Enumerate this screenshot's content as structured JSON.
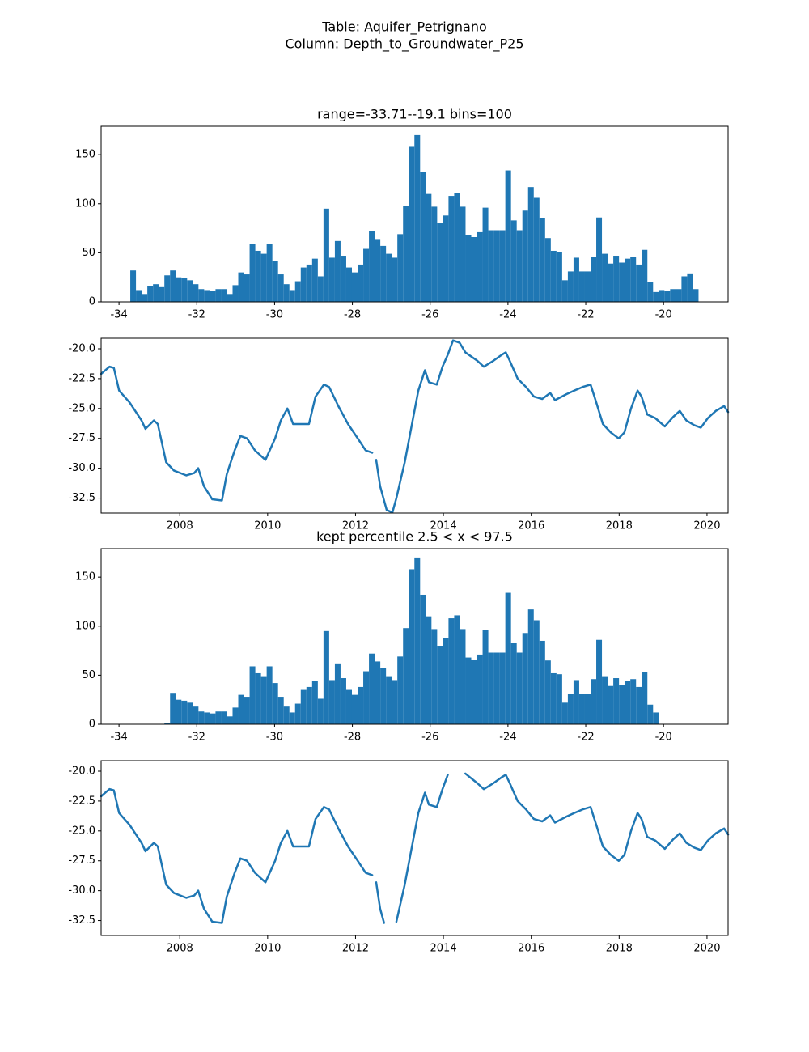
{
  "title": [
    "Table: Aquifer_Petrignano",
    "Column: Depth_to_Groundwater_P25"
  ],
  "chart_data": [
    {
      "type": "histogram",
      "title": "range=-33.71--19.1 bins=100",
      "color": "#1f77b4",
      "bins": [
        -33.71,
        -33.5639,
        -33.4178,
        -33.2717,
        -33.1256,
        -32.9795,
        -32.8334,
        -32.6873,
        -32.5412,
        -32.3951,
        -32.249,
        -32.1029,
        -31.9568,
        -31.8107,
        -31.6646,
        -31.5185,
        -31.3724,
        -31.2263,
        -31.0802,
        -30.9341,
        -30.788,
        -30.6419,
        -30.4958,
        -30.3497,
        -30.2036,
        -30.0575,
        -29.9114,
        -29.7653,
        -29.6192,
        -29.4731,
        -29.327,
        -29.1809,
        -29.0348,
        -28.8887,
        -28.7426,
        -28.5965,
        -28.4504,
        -28.3043,
        -28.1582,
        -28.0121,
        -27.866,
        -27.7199,
        -27.5738,
        -27.4277,
        -27.2816,
        -27.1355,
        -26.9894,
        -26.8433,
        -26.6972,
        -26.5511,
        -26.405,
        -26.2589,
        -26.1128,
        -25.9667,
        -25.8206,
        -25.6745,
        -25.5284,
        -25.3823,
        -25.2362,
        -25.0901,
        -24.944,
        -24.7979,
        -24.6518,
        -24.5057,
        -24.3596,
        -24.2135,
        -24.0674,
        -23.9213,
        -23.7752,
        -23.6291,
        -23.483,
        -23.3369,
        -23.1908,
        -23.0447,
        -22.8986,
        -22.7525,
        -22.6064,
        -22.4603,
        -22.3142,
        -22.1681,
        -22.022,
        -21.8759,
        -21.7298,
        -21.5837,
        -21.4376,
        -21.2915,
        -21.1454,
        -20.9993,
        -20.8532,
        -20.7071,
        -20.561,
        -20.4149,
        -20.2688,
        -20.1227,
        -19.9766,
        -19.8305,
        -19.6844,
        -19.5383,
        -19.3922,
        -19.2461,
        -19.1
      ],
      "values": [
        32,
        12,
        8,
        16,
        18,
        15,
        27,
        32,
        25,
        24,
        22,
        18,
        13,
        12,
        11,
        13,
        13,
        8,
        17,
        30,
        28,
        59,
        52,
        49,
        59,
        42,
        28,
        18,
        12,
        21,
        35,
        38,
        44,
        26,
        95,
        45,
        62,
        47,
        35,
        30,
        38,
        54,
        72,
        64,
        57,
        49,
        45,
        69,
        98,
        158,
        170,
        132,
        110,
        97,
        80,
        88,
        108,
        111,
        97,
        68,
        66,
        71,
        96,
        73,
        73,
        73,
        134,
        83,
        73,
        93,
        117,
        106,
        85,
        65,
        52,
        51,
        22,
        31,
        45,
        31,
        31,
        46,
        86,
        49,
        39,
        47,
        40,
        44,
        46,
        38,
        53,
        20,
        10,
        12,
        11,
        13,
        13,
        26,
        29,
        13
      ],
      "xlim": [
        -34.46,
        -18.34
      ],
      "ylim": [
        0,
        179
      ],
      "xticks": [
        -34,
        -32,
        -30,
        -28,
        -26,
        -24,
        -22,
        -20
      ],
      "yticks": [
        0,
        50,
        100,
        150
      ]
    },
    {
      "type": "line",
      "color": "#1f77b4",
      "x": [
        2006.21,
        2006.4,
        2006.5,
        2006.62,
        2006.86,
        2007.13,
        2007.22,
        2007.41,
        2007.5,
        2007.69,
        2007.87,
        2008.15,
        2008.33,
        2008.42,
        2008.55,
        2008.74,
        2008.96,
        2009.07,
        2009.25,
        2009.38,
        2009.53,
        2009.71,
        2009.95,
        2010.17,
        2010.3,
        2010.45,
        2010.58,
        2010.94,
        2011.09,
        2011.28,
        2011.4,
        2011.61,
        2011.83,
        2012.05,
        2012.23,
        2012.38,
        2012.42,
        2012.47,
        2012.56,
        2012.71,
        2012.84,
        2012.93,
        2013.12,
        2013.3,
        2013.43,
        2013.58,
        2013.67,
        2013.85,
        2013.98,
        2014.1,
        2014.22,
        2014.37,
        2014.5,
        2014.77,
        2014.92,
        2015.14,
        2015.33,
        2015.42,
        2015.51,
        2015.69,
        2015.88,
        2016.06,
        2016.25,
        2016.43,
        2016.54,
        2016.8,
        2016.98,
        2017.17,
        2017.35,
        2017.48,
        2017.63,
        2017.81,
        2017.99,
        2018.12,
        2018.27,
        2018.42,
        2018.51,
        2018.64,
        2018.82,
        2019.04,
        2019.23,
        2019.38,
        2019.53,
        2019.71,
        2019.86,
        2020.02,
        2020.2,
        2020.39,
        2020.48
      ],
      "values": [
        -22.1,
        -21.5,
        -21.6,
        -23.5,
        -24.5,
        -26,
        -26.7,
        -26,
        -26.3,
        -29.5,
        -30.2,
        -30.6,
        -30.4,
        -30,
        -31.5,
        -32.6,
        -32.7,
        -30.5,
        -28.5,
        -27.3,
        -27.5,
        -28.5,
        -29.3,
        -27.5,
        -26,
        -25,
        -26.3,
        -26.3,
        -24,
        -23,
        -23.2,
        -24.8,
        -26.3,
        -27.5,
        -28.5,
        -28.7,
        null,
        -29.3,
        -31.5,
        -33.5,
        -33.7,
        -32.5,
        -29.5,
        -26,
        -23.5,
        -21.8,
        -22.8,
        -23,
        -21.5,
        -20.5,
        -19.3,
        -19.5,
        -20.3,
        -21,
        -21.5,
        -21,
        -20.5,
        -20.3,
        -21,
        -22.5,
        -23.2,
        -24,
        -24.2,
        -23.7,
        -24.3,
        -23.8,
        -23.5,
        -23.2,
        -23,
        -24.5,
        -26.3,
        -27,
        -27.5,
        -27,
        -25,
        -23.5,
        -24,
        -25.5,
        -25.8,
        -26.5,
        -25.7,
        -25.2,
        -26,
        -26.4,
        -26.6,
        -25.8,
        -25.2,
        -24.8,
        -25.3
      ],
      "xlim": [
        2006.21,
        2020.48
      ],
      "ylim": [
        -33.75,
        -19.12
      ],
      "xticks": [
        2008,
        2010,
        2012,
        2014,
        2016,
        2018,
        2020
      ],
      "yticks": [
        -32.5,
        {
          "value": -30,
          "label": "-30.0"
        },
        -27.5,
        {
          "value": -25,
          "label": "-25.0"
        },
        -22.5,
        {
          "value": -20,
          "label": "-20.0"
        }
      ]
    },
    {
      "type": "histogram",
      "title": "kept percentile 2.5 < x < 97.5",
      "color": "#1f77b4",
      "bins": [
        -33.71,
        -33.5639,
        -33.4178,
        -33.2717,
        -33.1256,
        -32.9795,
        -32.8334,
        -32.6873,
        -32.5412,
        -32.3951,
        -32.249,
        -32.1029,
        -31.9568,
        -31.8107,
        -31.6646,
        -31.5185,
        -31.3724,
        -31.2263,
        -31.0802,
        -30.9341,
        -30.788,
        -30.6419,
        -30.4958,
        -30.3497,
        -30.2036,
        -30.0575,
        -29.9114,
        -29.7653,
        -29.6192,
        -29.4731,
        -29.327,
        -29.1809,
        -29.0348,
        -28.8887,
        -28.7426,
        -28.5965,
        -28.4504,
        -28.3043,
        -28.1582,
        -28.0121,
        -27.866,
        -27.7199,
        -27.5738,
        -27.4277,
        -27.2816,
        -27.1355,
        -26.9894,
        -26.8433,
        -26.6972,
        -26.5511,
        -26.405,
        -26.2589,
        -26.1128,
        -25.9667,
        -25.8206,
        -25.6745,
        -25.5284,
        -25.3823,
        -25.2362,
        -25.0901,
        -24.944,
        -24.7979,
        -24.6518,
        -24.5057,
        -24.3596,
        -24.2135,
        -24.0674,
        -23.9213,
        -23.7752,
        -23.6291,
        -23.483,
        -23.3369,
        -23.1908,
        -23.0447,
        -22.8986,
        -22.7525,
        -22.6064,
        -22.4603,
        -22.3142,
        -22.1681,
        -22.022,
        -21.8759,
        -21.7298,
        -21.5837,
        -21.4376,
        -21.2915,
        -21.1454,
        -20.9993,
        -20.8532,
        -20.7071,
        -20.561,
        -20.4149,
        -20.2688,
        -20.1227,
        -19.9766,
        -19.8305,
        -19.6844,
        -19.5383,
        -19.3922,
        -19.2461,
        -19.1
      ],
      "values": [
        0,
        0,
        0,
        0,
        0,
        0,
        1,
        32,
        25,
        24,
        22,
        18,
        13,
        12,
        11,
        13,
        13,
        8,
        17,
        30,
        28,
        59,
        52,
        49,
        59,
        42,
        28,
        18,
        12,
        21,
        35,
        38,
        44,
        26,
        95,
        45,
        62,
        47,
        35,
        30,
        38,
        54,
        72,
        64,
        57,
        49,
        45,
        69,
        98,
        158,
        170,
        132,
        110,
        97,
        80,
        88,
        108,
        111,
        97,
        68,
        66,
        71,
        96,
        73,
        73,
        73,
        134,
        83,
        73,
        93,
        117,
        106,
        85,
        65,
        52,
        51,
        22,
        31,
        45,
        31,
        31,
        46,
        86,
        49,
        39,
        47,
        40,
        44,
        46,
        38,
        53,
        20,
        12,
        0,
        0,
        0,
        0,
        0,
        0,
        0
      ],
      "xlim": [
        -34.46,
        -18.34
      ],
      "ylim": [
        0,
        179
      ],
      "xticks": [
        -34,
        -32,
        -30,
        -28,
        -26,
        -24,
        -22,
        -20
      ],
      "yticks": [
        0,
        50,
        100,
        150
      ]
    },
    {
      "type": "line",
      "color": "#1f77b4",
      "x": [
        2006.21,
        2006.4,
        2006.5,
        2006.62,
        2006.86,
        2007.13,
        2007.22,
        2007.41,
        2007.5,
        2007.69,
        2007.87,
        2008.15,
        2008.33,
        2008.42,
        2008.55,
        2008.74,
        2008.96,
        2009.07,
        2009.25,
        2009.38,
        2009.53,
        2009.71,
        2009.95,
        2010.17,
        2010.3,
        2010.45,
        2010.58,
        2010.94,
        2011.09,
        2011.28,
        2011.4,
        2011.61,
        2011.83,
        2012.05,
        2012.23,
        2012.38,
        2012.42,
        2012.47,
        2012.56,
        2012.65,
        2012.84,
        2012.93,
        2013.12,
        2013.3,
        2013.43,
        2013.58,
        2013.67,
        2013.85,
        2013.98,
        2014.1,
        2014.22,
        2014.37,
        2014.5,
        2014.77,
        2014.92,
        2015.14,
        2015.33,
        2015.42,
        2015.51,
        2015.69,
        2015.88,
        2016.06,
        2016.25,
        2016.43,
        2016.54,
        2016.8,
        2016.98,
        2017.17,
        2017.35,
        2017.48,
        2017.63,
        2017.81,
        2017.99,
        2018.12,
        2018.27,
        2018.42,
        2018.51,
        2018.64,
        2018.82,
        2019.04,
        2019.23,
        2019.38,
        2019.53,
        2019.71,
        2019.86,
        2020.02,
        2020.2,
        2020.39,
        2020.48
      ],
      "values": [
        -22.1,
        -21.5,
        -21.6,
        -23.5,
        -24.5,
        -26,
        -26.7,
        -26,
        -26.3,
        -29.5,
        -30.2,
        -30.6,
        -30.4,
        -30,
        -31.5,
        -32.6,
        -32.7,
        -30.5,
        -28.5,
        -27.3,
        -27.5,
        -28.5,
        -29.3,
        -27.5,
        -26,
        -25,
        -26.3,
        -26.3,
        -24,
        -23,
        -23.2,
        -24.8,
        -26.3,
        -27.5,
        -28.5,
        -28.7,
        null,
        -29.3,
        -31.5,
        -32.7,
        null,
        -32.6,
        -29.5,
        -26,
        -23.5,
        -21.8,
        -22.8,
        -23,
        -21.5,
        -20.3,
        null,
        null,
        -20.2,
        -21,
        -21.5,
        -21,
        -20.5,
        -20.3,
        -21,
        -22.5,
        -23.2,
        -24,
        -24.2,
        -23.7,
        -24.3,
        -23.8,
        -23.5,
        -23.2,
        -23,
        -24.5,
        -26.3,
        -27,
        -27.5,
        -27,
        -25,
        -23.5,
        -24,
        -25.5,
        -25.8,
        -26.5,
        -25.7,
        -25.2,
        -26,
        -26.4,
        -26.6,
        -25.8,
        -25.2,
        -24.8,
        -25.3
      ],
      "xlim": [
        2006.21,
        2020.48
      ],
      "ylim": [
        -33.75,
        -19.12
      ],
      "xticks": [
        2008,
        2010,
        2012,
        2014,
        2016,
        2018,
        2020
      ],
      "yticks": [
        -32.5,
        {
          "value": -30,
          "label": "-30.0"
        },
        -27.5,
        {
          "value": -25,
          "label": "-25.0"
        },
        -22.5,
        {
          "value": -20,
          "label": "-20.0"
        }
      ]
    }
  ]
}
